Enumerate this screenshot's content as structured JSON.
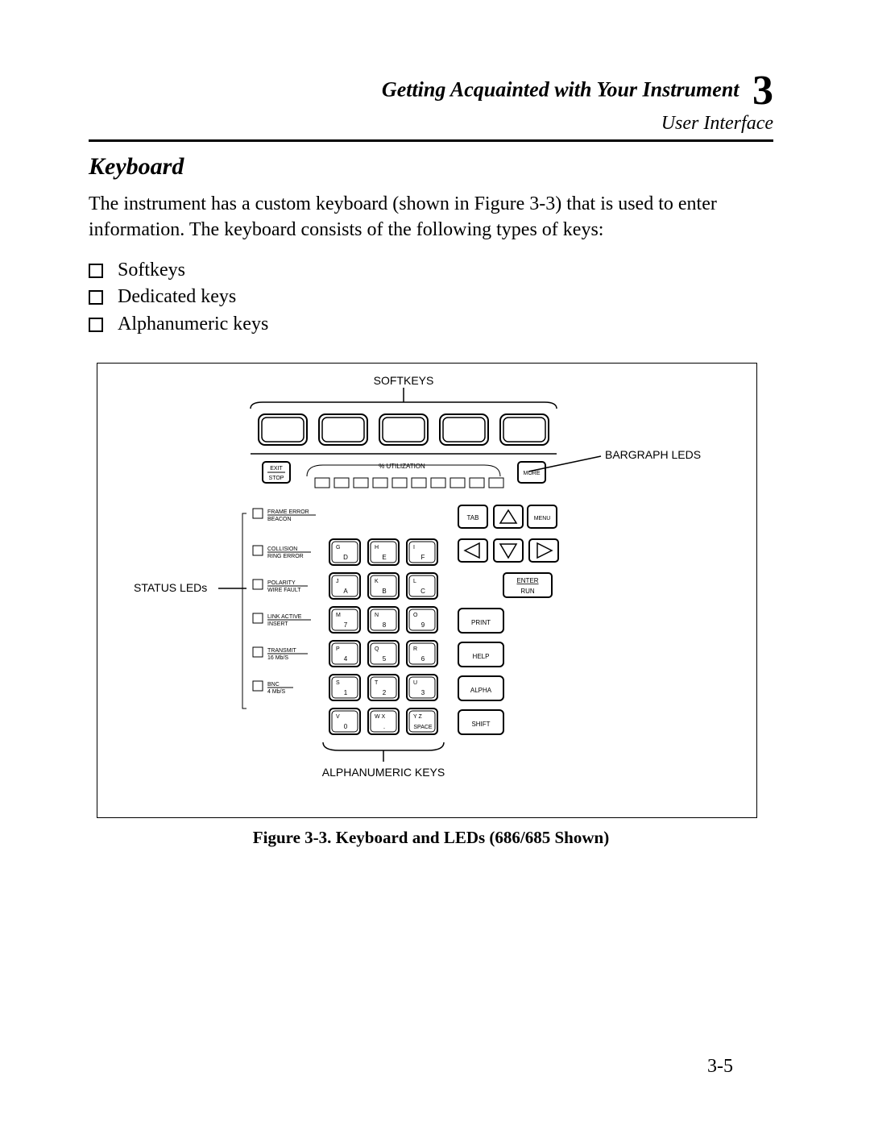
{
  "header": {
    "title": "Getting Acquainted with Your Instrument",
    "subtitle": "User Interface",
    "chapter": "3"
  },
  "section": {
    "heading": "Keyboard",
    "paragraph": "The instrument has a custom keyboard (shown in Figure 3-3) that is used to enter information.  The keyboard consists of the following types of keys:"
  },
  "bullets": [
    "Softkeys",
    "Dedicated keys",
    "Alphanumeric keys"
  ],
  "figure": {
    "top_label": "SOFTKEYS",
    "bargraph_label": "BARGRAPH LEDS",
    "status_label": "STATUS LEDs",
    "bottom_label": "ALPHANUMERIC KEYS",
    "utilization": "% UTILIZATION",
    "exit_stop": {
      "l1": "EXIT",
      "l2": "STOP"
    },
    "more": "MORE",
    "tab": "TAB",
    "menu": "MENU",
    "enter_run": {
      "l1": "ENTER",
      "l2": "RUN"
    },
    "status_leds": [
      {
        "l1": "FRAME ERROR",
        "l2": "BEACON"
      },
      {
        "l1": "COLLISION",
        "l2": "RING ERROR"
      },
      {
        "l1": "POLARITY",
        "l2": "WIRE FAULT"
      },
      {
        "l1": "LINK ACTIVE",
        "l2": "INSERT"
      },
      {
        "l1": "TRANSMIT",
        "l2": "16 Mb/S"
      },
      {
        "l1": "BNC",
        "l2": "4 Mb/S"
      }
    ],
    "keypad": [
      [
        {
          "s": "G",
          "m": "D"
        },
        {
          "s": "H",
          "m": "E"
        },
        {
          "s": "I",
          "m": "F"
        }
      ],
      [
        {
          "s": "J",
          "m": "A"
        },
        {
          "s": "K",
          "m": "B"
        },
        {
          "s": "L",
          "m": "C"
        }
      ],
      [
        {
          "s": "M",
          "m": "7"
        },
        {
          "s": "N",
          "m": "8"
        },
        {
          "s": "O",
          "m": "9"
        }
      ],
      [
        {
          "s": "P",
          "m": "4"
        },
        {
          "s": "Q",
          "m": "5"
        },
        {
          "s": "R",
          "m": "6"
        }
      ],
      [
        {
          "s": "S",
          "m": "1"
        },
        {
          "s": "T",
          "m": "2"
        },
        {
          "s": "U",
          "m": "3"
        }
      ],
      [
        {
          "s": "V",
          "m": "0"
        },
        {
          "s": "W X",
          "m": "."
        },
        {
          "s": "Y Z",
          "m": "SPACE"
        }
      ]
    ],
    "side_keys": [
      "PRINT",
      "HELP",
      "ALPHA",
      "SHIFT"
    ],
    "caption": "Figure 3-3.  Keyboard and LEDs (686/685 Shown)"
  },
  "page_number": "3-5",
  "colors": {
    "fg": "#000000",
    "bg": "#ffffff"
  }
}
